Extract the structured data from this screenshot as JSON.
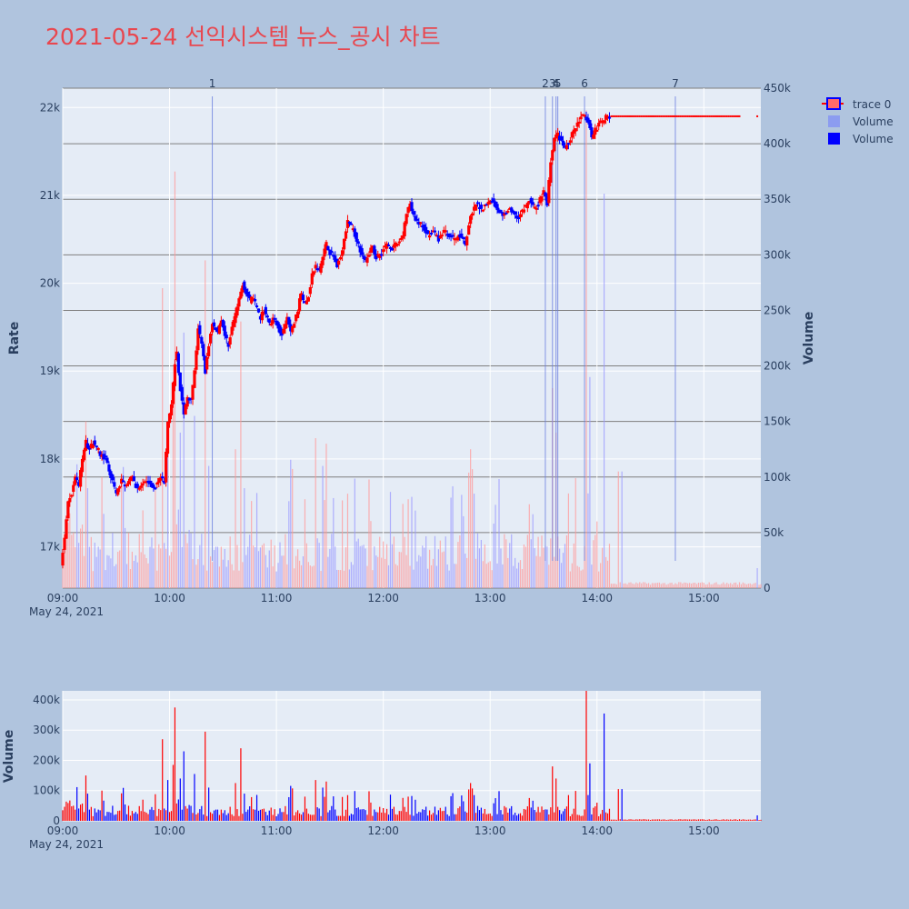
{
  "chart_data": {
    "type": "candlestick",
    "title": "2021-05-24 선익시스템 뉴스_공시 차트",
    "date_label": "May 24, 2021",
    "colors": {
      "up": "#ff0000",
      "down": "#0000ff",
      "volume_up": "#ff9999",
      "volume_down": "#9999ff",
      "news_line": "#6a7ee0",
      "background": "#b0c4de",
      "plot_bg": "#e5ecf6"
    },
    "price_axis": {
      "label": "Rate",
      "range": [
        16530,
        22220
      ],
      "ticks": [
        17000,
        18000,
        19000,
        20000,
        21000,
        22000
      ],
      "tick_labels": [
        "17k",
        "18k",
        "19k",
        "20k",
        "21k",
        "22k"
      ]
    },
    "overlay_volume_axis": {
      "label": "Volume",
      "range": [
        0,
        450000
      ],
      "ticks": [
        0,
        50000,
        100000,
        150000,
        200000,
        250000,
        300000,
        350000,
        400000,
        450000
      ],
      "tick_labels": [
        "0",
        "50k",
        "100k",
        "150k",
        "200k",
        "250k",
        "300k",
        "350k",
        "400k",
        "450k"
      ]
    },
    "lower_volume_axis": {
      "label": "Volume",
      "range": [
        0,
        430000
      ],
      "ticks": [
        0,
        100000,
        200000,
        300000,
        400000
      ],
      "tick_labels": [
        "0",
        "100k",
        "200k",
        "300k",
        "400k"
      ]
    },
    "time_axis": {
      "range": [
        "09:00",
        "15:32"
      ],
      "ticks": [
        "09:00",
        "10:00",
        "11:00",
        "12:00",
        "13:00",
        "14:00",
        "15:00"
      ],
      "tick_labels": [
        "09:00",
        "10:00",
        "11:00",
        "12:00",
        "13:00",
        "14:00",
        "15:00"
      ]
    },
    "legend": [
      {
        "name": "trace 0",
        "kind": "candlestick"
      },
      {
        "name": "Volume",
        "kind": "bar-light"
      },
      {
        "name": "Volume",
        "kind": "bar-dark"
      }
    ],
    "news_markers": [
      {
        "label": "1",
        "time": "10:24"
      },
      {
        "label": "2",
        "time": "13:31"
      },
      {
        "label": "3",
        "time": "13:35"
      },
      {
        "label": "4",
        "time": "13:37"
      },
      {
        "label": "5",
        "time": "13:38"
      },
      {
        "label": "6",
        "time": "13:53"
      },
      {
        "label": "7",
        "time": "14:44"
      }
    ],
    "price_path": [
      [
        "09:00",
        16800
      ],
      [
        "09:02",
        17100
      ],
      [
        "09:04",
        17500
      ],
      [
        "09:06",
        17600
      ],
      [
        "09:08",
        17800
      ],
      [
        "09:10",
        17700
      ],
      [
        "09:12",
        18000
      ],
      [
        "09:14",
        18200
      ],
      [
        "09:16",
        18100
      ],
      [
        "09:18",
        18200
      ],
      [
        "09:20",
        18150
      ],
      [
        "09:22",
        18050
      ],
      [
        "09:25",
        18000
      ],
      [
        "09:28",
        17800
      ],
      [
        "09:31",
        17600
      ],
      [
        "09:34",
        17750
      ],
      [
        "09:37",
        17700
      ],
      [
        "09:40",
        17800
      ],
      [
        "09:43",
        17650
      ],
      [
        "09:46",
        17700
      ],
      [
        "09:49",
        17750
      ],
      [
        "09:52",
        17650
      ],
      [
        "09:54",
        17750
      ],
      [
        "09:56",
        17800
      ],
      [
        "09:58",
        17750
      ],
      [
        "10:00",
        18400
      ],
      [
        "10:02",
        18600
      ],
      [
        "10:04",
        19100
      ],
      [
        "10:05",
        19200
      ],
      [
        "10:07",
        18800
      ],
      [
        "10:09",
        18500
      ],
      [
        "10:11",
        18700
      ],
      [
        "10:13",
        18650
      ],
      [
        "10:15",
        19000
      ],
      [
        "10:17",
        19500
      ],
      [
        "10:19",
        19300
      ],
      [
        "10:21",
        19000
      ],
      [
        "10:23",
        19300
      ],
      [
        "10:25",
        19550
      ],
      [
        "10:28",
        19450
      ],
      [
        "10:30",
        19600
      ],
      [
        "10:32",
        19400
      ],
      [
        "10:34",
        19300
      ],
      [
        "10:36",
        19500
      ],
      [
        "10:38",
        19650
      ],
      [
        "10:40",
        19800
      ],
      [
        "10:42",
        20000
      ],
      [
        "10:44",
        19900
      ],
      [
        "10:46",
        19800
      ],
      [
        "10:48",
        19850
      ],
      [
        "10:50",
        19700
      ],
      [
        "10:52",
        19600
      ],
      [
        "10:54",
        19700
      ],
      [
        "10:57",
        19550
      ],
      [
        "11:00",
        19600
      ],
      [
        "11:02",
        19500
      ],
      [
        "11:04",
        19400
      ],
      [
        "11:07",
        19600
      ],
      [
        "11:09",
        19450
      ],
      [
        "11:11",
        19550
      ],
      [
        "11:13",
        19700
      ],
      [
        "11:15",
        19900
      ],
      [
        "11:17",
        19750
      ],
      [
        "11:19",
        19850
      ],
      [
        "11:21",
        20100
      ],
      [
        "11:23",
        20200
      ],
      [
        "11:25",
        20150
      ],
      [
        "11:27",
        20300
      ],
      [
        "11:29",
        20450
      ],
      [
        "11:31",
        20350
      ],
      [
        "11:33",
        20300
      ],
      [
        "11:35",
        20200
      ],
      [
        "11:37",
        20300
      ],
      [
        "11:39",
        20500
      ],
      [
        "11:41",
        20700
      ],
      [
        "11:43",
        20650
      ],
      [
        "11:45",
        20550
      ],
      [
        "11:47",
        20450
      ],
      [
        "11:49",
        20300
      ],
      [
        "11:51",
        20250
      ],
      [
        "11:53",
        20350
      ],
      [
        "11:55",
        20400
      ],
      [
        "11:57",
        20300
      ],
      [
        "12:00",
        20350
      ],
      [
        "12:03",
        20450
      ],
      [
        "12:06",
        20400
      ],
      [
        "12:09",
        20450
      ],
      [
        "12:12",
        20550
      ],
      [
        "12:14",
        20800
      ],
      [
        "12:16",
        20900
      ],
      [
        "12:18",
        20750
      ],
      [
        "12:20",
        20700
      ],
      [
        "12:23",
        20650
      ],
      [
        "12:26",
        20550
      ],
      [
        "12:29",
        20600
      ],
      [
        "12:32",
        20500
      ],
      [
        "12:35",
        20600
      ],
      [
        "12:38",
        20550
      ],
      [
        "12:41",
        20500
      ],
      [
        "12:44",
        20550
      ],
      [
        "12:47",
        20450
      ],
      [
        "12:50",
        20750
      ],
      [
        "12:53",
        20900
      ],
      [
        "12:56",
        20850
      ],
      [
        "12:59",
        20900
      ],
      [
        "13:02",
        20950
      ],
      [
        "13:05",
        20850
      ],
      [
        "13:08",
        20750
      ],
      [
        "13:11",
        20850
      ],
      [
        "13:14",
        20800
      ],
      [
        "13:17",
        20750
      ],
      [
        "13:20",
        20850
      ],
      [
        "13:23",
        20950
      ],
      [
        "13:26",
        20850
      ],
      [
        "13:28",
        20900
      ],
      [
        "13:31",
        21050
      ],
      [
        "13:33",
        20900
      ],
      [
        "13:35",
        21400
      ],
      [
        "13:37",
        21650
      ],
      [
        "13:39",
        21700
      ],
      [
        "13:41",
        21600
      ],
      [
        "13:43",
        21550
      ],
      [
        "13:45",
        21600
      ],
      [
        "13:47",
        21700
      ],
      [
        "13:50",
        21800
      ],
      [
        "13:52",
        21900
      ],
      [
        "13:54",
        21900
      ],
      [
        "13:56",
        21850
      ],
      [
        "13:58",
        21650
      ],
      [
        "14:00",
        21750
      ],
      [
        "14:02",
        21800
      ],
      [
        "14:04",
        21850
      ],
      [
        "14:06",
        21900
      ],
      [
        "14:10",
        21900
      ],
      [
        "14:20",
        21900
      ],
      [
        "14:40",
        21900
      ],
      [
        "15:00",
        21900
      ],
      [
        "15:20",
        21900
      ]
    ],
    "final_price": {
      "time": "15:30",
      "value": 21900
    },
    "volume_spikes": [
      {
        "time": "09:13",
        "value": 150000,
        "dir": "up"
      },
      {
        "time": "09:22",
        "value": 100000,
        "dir": "up"
      },
      {
        "time": "09:45",
        "value": 70000,
        "dir": "up"
      },
      {
        "time": "09:56",
        "value": 270000,
        "dir": "up"
      },
      {
        "time": "09:59",
        "value": 135000,
        "dir": "down"
      },
      {
        "time": "10:02",
        "value": 185000,
        "dir": "up"
      },
      {
        "time": "10:03",
        "value": 375000,
        "dir": "up"
      },
      {
        "time": "10:06",
        "value": 140000,
        "dir": "down"
      },
      {
        "time": "10:08",
        "value": 230000,
        "dir": "down"
      },
      {
        "time": "10:14",
        "value": 155000,
        "dir": "down"
      },
      {
        "time": "10:20",
        "value": 295000,
        "dir": "up"
      },
      {
        "time": "10:22",
        "value": 110000,
        "dir": "down"
      },
      {
        "time": "10:37",
        "value": 125000,
        "dir": "up"
      },
      {
        "time": "10:40",
        "value": 240000,
        "dir": "up"
      },
      {
        "time": "10:42",
        "value": 90000,
        "dir": "down"
      },
      {
        "time": "11:16",
        "value": 80000,
        "dir": "up"
      },
      {
        "time": "11:22",
        "value": 135000,
        "dir": "up"
      },
      {
        "time": "11:26",
        "value": 110000,
        "dir": "down"
      },
      {
        "time": "11:28",
        "value": 130000,
        "dir": "up"
      },
      {
        "time": "11:40",
        "value": 85000,
        "dir": "up"
      },
      {
        "time": "12:14",
        "value": 80000,
        "dir": "up"
      },
      {
        "time": "12:49",
        "value": 125000,
        "dir": "up"
      },
      {
        "time": "12:51",
        "value": 85000,
        "dir": "down"
      },
      {
        "time": "13:03",
        "value": 75000,
        "dir": "down"
      },
      {
        "time": "13:35",
        "value": 180000,
        "dir": "up"
      },
      {
        "time": "13:37",
        "value": 140000,
        "dir": "up"
      },
      {
        "time": "13:54",
        "value": 430000,
        "dir": "up"
      },
      {
        "time": "13:56",
        "value": 190000,
        "dir": "down"
      },
      {
        "time": "14:04",
        "value": 355000,
        "dir": "down"
      },
      {
        "time": "14:12",
        "value": 105000,
        "dir": "up"
      },
      {
        "time": "14:14",
        "value": 105000,
        "dir": "down"
      },
      {
        "time": "15:30",
        "value": 18000,
        "dir": "down"
      }
    ]
  }
}
